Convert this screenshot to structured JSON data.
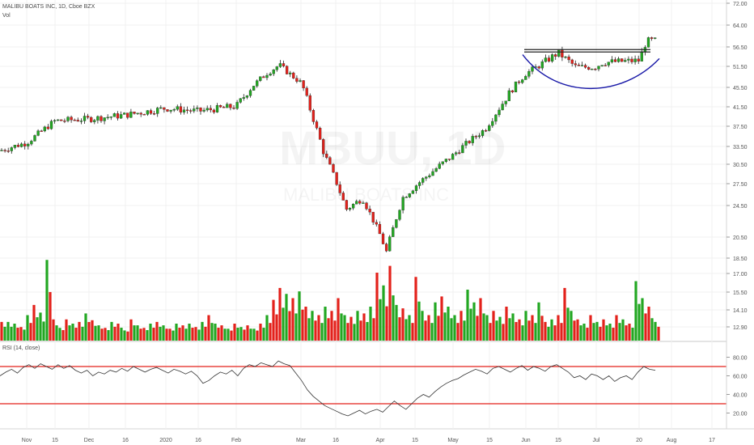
{
  "header": {
    "title": "MALIBU BOATS INC, 1D, Cboe BZX",
    "volume_label": "Vol",
    "rsi_label": "RSI (14, close)"
  },
  "watermark": {
    "symbol": "MBUU, 1D",
    "company": "MALIBU BOATS INC"
  },
  "colors": {
    "up": "#22a722",
    "down": "#e3211b",
    "wick": "#222222",
    "rsi_line": "#333333",
    "rsi_bands": "#e3211b",
    "cup_curve": "#1a1aa8",
    "resistance": "#222222",
    "grid": "#f0f0f0"
  },
  "chart_data": [
    {
      "type": "candlestick",
      "title": "MALIBU BOATS INC, 1D, Cboe BZX",
      "price_axis_ticks": [
        "72.00",
        "64.00",
        "56.50",
        "51.50",
        "45.50",
        "41.50",
        "37.50",
        "33.50",
        "30.50",
        "27.50",
        "24.50",
        "20.50",
        "18.50",
        "17.00",
        "15.50",
        "14.10",
        "12.90"
      ],
      "ylim": [
        12.9,
        72.0
      ],
      "x_tick_labels": [
        "Nov",
        "15",
        "Dec",
        "16",
        "2020",
        "16",
        "Feb",
        "Mar",
        "16",
        "Apr",
        "15",
        "May",
        "15",
        "Jun",
        "15",
        "Jul",
        "20",
        "Aug",
        "17"
      ],
      "series": [
        {
          "name": "close",
          "x": [
            "2019-10-23",
            "2019-11-01",
            "2019-11-15",
            "2019-12-02",
            "2019-12-16",
            "2020-01-02",
            "2020-01-16",
            "2020-02-03",
            "2020-02-14",
            "2020-02-21",
            "2020-03-02",
            "2020-03-16",
            "2020-03-23",
            "2020-04-01",
            "2020-04-08",
            "2020-04-15",
            "2020-05-01",
            "2020-05-15",
            "2020-05-29",
            "2020-06-08",
            "2020-06-15",
            "2020-06-26",
            "2020-07-01",
            "2020-07-15",
            "2020-07-20",
            "2020-07-24"
          ],
          "values": [
            32.8,
            34.2,
            38.6,
            39.0,
            39.8,
            41.2,
            40.6,
            41.6,
            49.6,
            51.8,
            46.8,
            32.5,
            24.0,
            25.5,
            19.0,
            25.6,
            32.0,
            37.0,
            49.4,
            55.0,
            51.3,
            51.2,
            52.5,
            53.0,
            58.7,
            58.8
          ]
        }
      ],
      "annotations": [
        {
          "kind": "resistance",
          "price": 55.4,
          "x_start": "2020-06-01",
          "x_end": "2020-07-24"
        },
        {
          "kind": "cup",
          "points": [
            [
              "2020-06-01",
              54.5
            ],
            [
              "2020-07-01",
              47.5
            ],
            [
              "2020-07-24",
              53.5
            ]
          ]
        }
      ]
    },
    {
      "type": "bar",
      "name": "Vol",
      "note": "volume bars, relative heights",
      "values": [
        0.22,
        0.22,
        0.2,
        0.16,
        0.3,
        0.42,
        0.33,
        0.95,
        0.25,
        0.15,
        0.25,
        0.2,
        0.22,
        0.32,
        0.24,
        0.18,
        0.15,
        0.22,
        0.2,
        0.12,
        0.25,
        0.18,
        0.15,
        0.2,
        0.22,
        0.18,
        0.14,
        0.2,
        0.18,
        0.2,
        0.16,
        0.22,
        0.3,
        0.2,
        0.18,
        0.14,
        0.2,
        0.16,
        0.18,
        0.14,
        0.2,
        0.3,
        0.48,
        0.62,
        0.55,
        0.5,
        0.58,
        0.4,
        0.35,
        0.3,
        0.4,
        0.35,
        0.5,
        0.3,
        0.28,
        0.35,
        0.32,
        0.4,
        0.8,
        0.65,
        0.88,
        0.42,
        0.38,
        0.3,
        0.75,
        0.35,
        0.3,
        0.45,
        0.52,
        0.4,
        0.3,
        0.35,
        0.6,
        0.45,
        0.5,
        0.3,
        0.35,
        0.28,
        0.4,
        0.32,
        0.25,
        0.35,
        0.3,
        0.45,
        0.22,
        0.25,
        0.3,
        0.62,
        0.35,
        0.25,
        0.2,
        0.3,
        0.22,
        0.25,
        0.2,
        0.3,
        0.25,
        0.2,
        0.7,
        0.5,
        0.4,
        0.22
      ],
      "colors": [
        "down",
        "up",
        "up",
        "down",
        "up",
        "down",
        "up",
        "up",
        "down",
        "up",
        "down",
        "up",
        "down",
        "up",
        "down",
        "up",
        "down",
        "up",
        "down",
        "up",
        "down",
        "up",
        "down",
        "up",
        "down",
        "up",
        "down",
        "up",
        "down",
        "up",
        "down",
        "up",
        "down",
        "up",
        "down",
        "up",
        "down",
        "up",
        "down",
        "up",
        "down",
        "up",
        "down",
        "down",
        "up",
        "down",
        "up",
        "down",
        "up",
        "down",
        "up",
        "down",
        "down",
        "up",
        "down",
        "up",
        "down",
        "up",
        "down",
        "up",
        "down",
        "up",
        "down",
        "up",
        "down",
        "up",
        "down",
        "up",
        "down",
        "up",
        "up",
        "down",
        "up",
        "up",
        "down",
        "up",
        "down",
        "up",
        "down",
        "up",
        "down",
        "up",
        "down",
        "up",
        "down",
        "up",
        "down",
        "down",
        "up",
        "down",
        "up",
        "down",
        "up",
        "down",
        "up",
        "down",
        "up",
        "down",
        "up",
        "up",
        "down",
        "up"
      ]
    },
    {
      "type": "line",
      "name": "RSI (14, close)",
      "ylim": [
        10,
        90
      ],
      "y_tick_labels": [
        "80.00",
        "60.00",
        "40.00",
        "20.00"
      ],
      "bands": [
        70,
        30
      ],
      "values": [
        60,
        64,
        67,
        63,
        69,
        72,
        68,
        73,
        70,
        67,
        72,
        68,
        71,
        66,
        63,
        66,
        60,
        64,
        62,
        66,
        64,
        68,
        65,
        70,
        67,
        64,
        67,
        69,
        66,
        63,
        67,
        65,
        62,
        65,
        60,
        52,
        55,
        60,
        64,
        62,
        66,
        60,
        68,
        72,
        70,
        74,
        72,
        70,
        76,
        73,
        71,
        63,
        55,
        45,
        38,
        33,
        28,
        25,
        22,
        19,
        17,
        20,
        23,
        19,
        22,
        24,
        21,
        27,
        33,
        28,
        24,
        30,
        36,
        40,
        37,
        43,
        48,
        52,
        55,
        57,
        61,
        64,
        67,
        65,
        62,
        68,
        70,
        67,
        64,
        68,
        71,
        66,
        70,
        68,
        65,
        70,
        72,
        68,
        64,
        58,
        60,
        56,
        62,
        60,
        56,
        60,
        54,
        58,
        60,
        56,
        64,
        70,
        67,
        66
      ],
      "axis_bottom_labels": [
        "Nov",
        "15",
        "Dec",
        "16",
        "2020",
        "16",
        "Feb",
        "Mar",
        "16",
        "Apr",
        "15",
        "May",
        "15",
        "Jun",
        "15",
        "Jul",
        "20",
        "Aug",
        "17"
      ]
    }
  ]
}
